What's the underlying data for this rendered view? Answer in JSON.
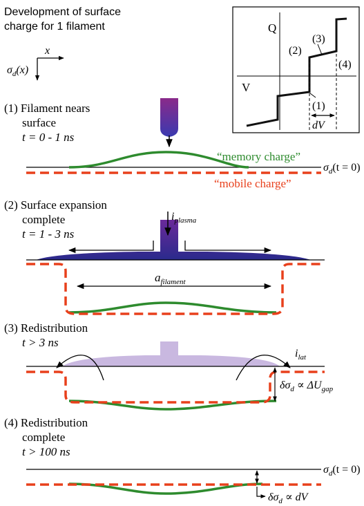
{
  "title": {
    "line1": "Development of surface",
    "line2": "charge for 1 filament"
  },
  "axes_glyph": {
    "x": "x",
    "sigma": "σ",
    "sigma_sub": "d",
    "sigma_arg": "(x)"
  },
  "qv_inset": {
    "q_label": "Q",
    "v_label": "V",
    "point_1": "(1)",
    "point_2": "(2)",
    "point_3": "(3)",
    "point_4": "(4)",
    "dv": "dV"
  },
  "stage1": {
    "label_num": "(1)",
    "label_l1": "Filament nears",
    "label_l2": "surface",
    "time": "t = 0 - 1 ns",
    "memory_charge": "“memory charge”",
    "mobile_charge": "“mobile charge”",
    "sigma_ref": "σ",
    "sigma_ref_sub": "d",
    "sigma_ref_arg": "(t = 0)"
  },
  "stage2": {
    "label_num": "(2)",
    "label_l1": "Surface expansion",
    "label_l2": "complete",
    "time": "t = 1 - 3 ns",
    "i_plasma": "i",
    "i_plasma_sub": "plasma",
    "a_filament": "a",
    "a_filament_sub": "filament"
  },
  "stage3": {
    "label_num": "(3)",
    "label_l1": "Redistribution",
    "time": "t > 3 ns",
    "i_lat": "i",
    "i_lat_sub": "lat",
    "delta_sigma": "δσ",
    "delta_sigma_sub": "d",
    "delta_sigma_mid": " ∝ ΔU",
    "delta_sigma_sub2": "gap"
  },
  "stage4": {
    "label_num": "(4)",
    "label_l1": "Redistribution",
    "label_l2": "complete",
    "time": "t > 100 ns",
    "sigma_ref": "σ",
    "sigma_ref_sub": "d",
    "sigma_ref_arg": "(t = 0)",
    "delta_sigma": "δσ",
    "delta_sigma_sub": "d",
    "delta_sigma_mid": " ∝ dV"
  },
  "colors": {
    "memory": "#2e8b2e",
    "mobile": "#e8401c",
    "plasma_dark": "#2a2a8c",
    "plasma_light": "#c9b8e0",
    "filament_top": "#8a2a8a",
    "filament_bottom": "#3a3ab0",
    "line": "#000000"
  }
}
